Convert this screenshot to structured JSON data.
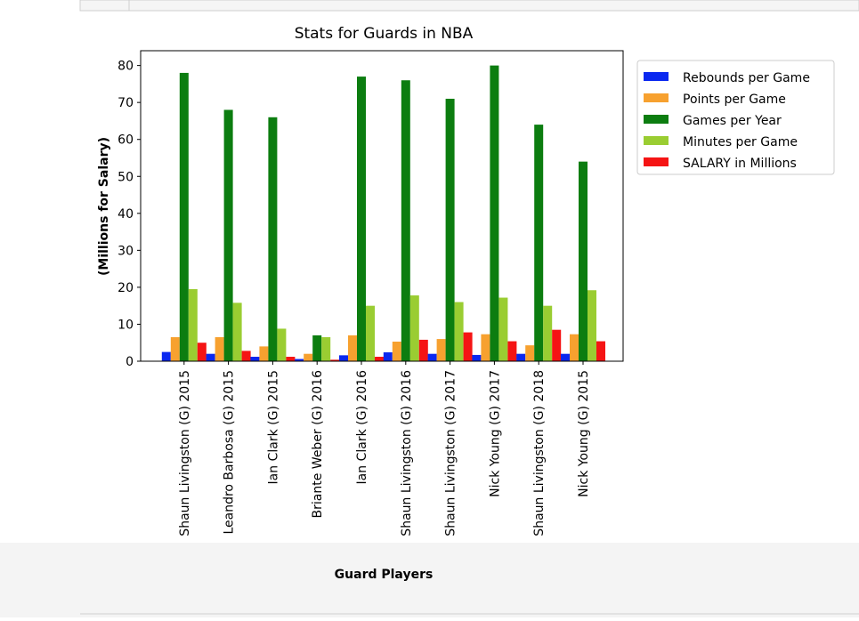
{
  "chart_data": {
    "type": "bar",
    "title": "Stats for Guards in NBA",
    "xlabel": "Guard Players",
    "ylabel": "(Millions for Salary)",
    "categories": [
      "Shaun Livingston (G) 2015",
      "Leandro Barbosa (G) 2015",
      "Ian Clark (G) 2015",
      "Briante Weber (G) 2016",
      "Ian Clark (G) 2016",
      "Shaun Livingston (G) 2016",
      "Shaun Livingston (G) 2017",
      "Nick Young (G) 2017",
      "Shaun Livingston (G) 2018",
      "Nick Young (G) 2015"
    ],
    "series": [
      {
        "name": "Rebounds per Game",
        "color": "#0a28f0",
        "values": [
          2.5,
          2,
          1.2,
          0.6,
          1.6,
          2.4,
          2,
          1.7,
          2,
          2
        ]
      },
      {
        "name": "Points per Game",
        "color": "#f7a12f",
        "values": [
          6.5,
          6.5,
          4,
          2,
          7,
          5.3,
          6,
          7.3,
          4.3,
          7.3
        ]
      },
      {
        "name": "Games per Year",
        "color": "#0c7d10",
        "values": [
          78,
          68,
          66,
          7,
          77,
          76,
          71,
          80,
          64,
          54
        ]
      },
      {
        "name": "Minutes per Game",
        "color": "#9acd32",
        "values": [
          19.5,
          15.8,
          8.8,
          6.5,
          15,
          17.8,
          16,
          17.2,
          15,
          19.2
        ]
      },
      {
        "name": "SALARY in Millions",
        "color": "#f51414",
        "values": [
          5,
          2.8,
          1.2,
          0.4,
          1.2,
          5.8,
          7.8,
          5.4,
          8.5,
          5.4
        ]
      }
    ],
    "ylim": [
      0,
      84
    ],
    "yticks": [
      0,
      10,
      20,
      30,
      40,
      50,
      60,
      70,
      80
    ],
    "legend": "upper right outside"
  }
}
